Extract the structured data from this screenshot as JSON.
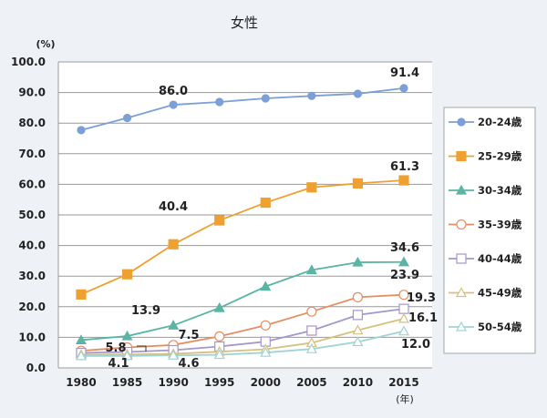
{
  "chart_data": {
    "type": "line",
    "title": "女性",
    "ylabel": "(%)",
    "xlabel": "(年)",
    "x": [
      1980,
      1985,
      1990,
      1995,
      2000,
      2005,
      2010,
      2015
    ],
    "ylim": [
      0,
      100
    ],
    "yticks": [
      "0.0",
      "10.0",
      "20.0",
      "30.0",
      "40.0",
      "50.0",
      "60.0",
      "70.0",
      "80.0",
      "90.0",
      "100.0"
    ],
    "grid": true,
    "legend": "right",
    "series": [
      {
        "name": "20-24歳",
        "color": "#7b9fd6",
        "marker": "circle-filled",
        "values": [
          77.7,
          81.7,
          86.0,
          86.9,
          88.1,
          88.9,
          89.6,
          91.4
        ]
      },
      {
        "name": "25-29歳",
        "color": "#eea030",
        "marker": "square-filled",
        "values": [
          24.0,
          30.6,
          40.4,
          48.2,
          54.0,
          59.0,
          60.3,
          61.3
        ]
      },
      {
        "name": "30-34歳",
        "color": "#5ab5a5",
        "marker": "triangle-filled",
        "values": [
          9.1,
          10.4,
          13.9,
          19.6,
          26.6,
          32.0,
          34.5,
          34.6
        ]
      },
      {
        "name": "35-39歳",
        "color": "#e58e64",
        "marker": "circle-open",
        "values": [
          5.6,
          6.7,
          7.5,
          10.3,
          13.9,
          18.4,
          23.1,
          23.9
        ]
      },
      {
        "name": "40-44歳",
        "color": "#a596cc",
        "marker": "square-open",
        "values": [
          4.9,
          5.2,
          5.8,
          7.0,
          8.6,
          12.2,
          17.3,
          19.3
        ]
      },
      {
        "name": "45-49歳",
        "color": "#d6c080",
        "marker": "triangle-open",
        "values": [
          4.3,
          4.4,
          4.6,
          5.3,
          6.1,
          8.2,
          12.3,
          16.1
        ]
      },
      {
        "name": "50-54歳",
        "color": "#9fd4d4",
        "marker": "triangle-open",
        "values": [
          3.9,
          3.9,
          4.1,
          4.3,
          5.0,
          6.2,
          8.5,
          12.0
        ]
      }
    ],
    "annotations": [
      "86.0",
      "91.4",
      "61.3",
      "40.4",
      "34.6",
      "23.9",
      "19.3",
      "16.1",
      "12.0",
      "13.9",
      "7.5",
      "5.8",
      "4.1",
      "4.6"
    ]
  }
}
